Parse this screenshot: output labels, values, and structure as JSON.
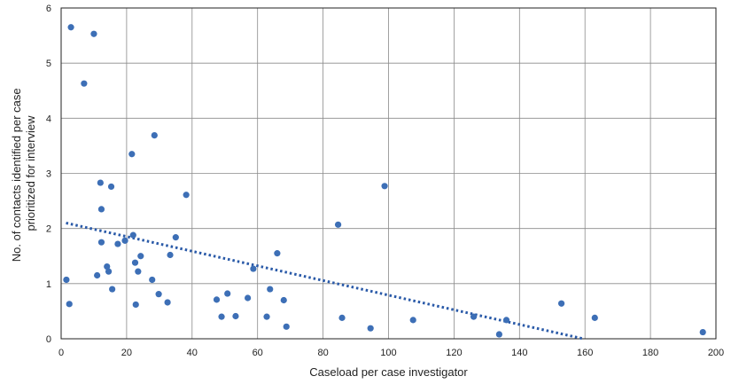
{
  "chart_data": {
    "type": "scatter",
    "title": "",
    "xlabel": "Caseload per case investigator",
    "ylabel_lines": [
      "No. of contacts identified per case",
      "prioritized for interview"
    ],
    "xlim": [
      0,
      200
    ],
    "ylim": [
      0,
      6
    ],
    "x_ticks": [
      0,
      20,
      40,
      60,
      80,
      100,
      120,
      140,
      160,
      180,
      200
    ],
    "y_ticks": [
      0,
      1,
      2,
      3,
      4,
      5,
      6
    ],
    "grid": true,
    "legend": "none",
    "point_color": "#3d6fb6",
    "trend_color": "#2a5aa8",
    "points": [
      {
        "x": 1.6,
        "y": 1.07
      },
      {
        "x": 2.5,
        "y": 0.63
      },
      {
        "x": 3.0,
        "y": 5.65
      },
      {
        "x": 7.0,
        "y": 4.63
      },
      {
        "x": 10.0,
        "y": 5.53
      },
      {
        "x": 11.0,
        "y": 1.15
      },
      {
        "x": 12.0,
        "y": 2.83
      },
      {
        "x": 12.3,
        "y": 2.35
      },
      {
        "x": 12.3,
        "y": 1.75
      },
      {
        "x": 14.0,
        "y": 1.31
      },
      {
        "x": 14.5,
        "y": 1.22
      },
      {
        "x": 15.3,
        "y": 2.76
      },
      {
        "x": 15.6,
        "y": 0.9
      },
      {
        "x": 17.3,
        "y": 1.72
      },
      {
        "x": 19.5,
        "y": 1.78
      },
      {
        "x": 21.6,
        "y": 3.35
      },
      {
        "x": 22.0,
        "y": 1.88
      },
      {
        "x": 22.6,
        "y": 1.38
      },
      {
        "x": 22.8,
        "y": 0.62
      },
      {
        "x": 23.5,
        "y": 1.22
      },
      {
        "x": 24.3,
        "y": 1.5
      },
      {
        "x": 27.8,
        "y": 1.07
      },
      {
        "x": 28.5,
        "y": 3.69
      },
      {
        "x": 29.8,
        "y": 0.81
      },
      {
        "x": 32.5,
        "y": 0.66
      },
      {
        "x": 33.3,
        "y": 1.52
      },
      {
        "x": 35.0,
        "y": 1.84
      },
      {
        "x": 38.2,
        "y": 2.61
      },
      {
        "x": 47.5,
        "y": 0.71
      },
      {
        "x": 49.0,
        "y": 0.4
      },
      {
        "x": 50.8,
        "y": 0.82
      },
      {
        "x": 53.3,
        "y": 0.41
      },
      {
        "x": 57.0,
        "y": 0.74
      },
      {
        "x": 58.7,
        "y": 1.27
      },
      {
        "x": 62.8,
        "y": 0.4
      },
      {
        "x": 63.8,
        "y": 0.9
      },
      {
        "x": 66.0,
        "y": 1.55
      },
      {
        "x": 68.0,
        "y": 0.7
      },
      {
        "x": 68.8,
        "y": 0.22
      },
      {
        "x": 84.6,
        "y": 2.07
      },
      {
        "x": 85.8,
        "y": 0.38
      },
      {
        "x": 94.5,
        "y": 0.19
      },
      {
        "x": 98.8,
        "y": 2.77
      },
      {
        "x": 107.5,
        "y": 0.34
      },
      {
        "x": 126.0,
        "y": 0.4
      },
      {
        "x": 133.8,
        "y": 0.08
      },
      {
        "x": 136.0,
        "y": 0.34
      },
      {
        "x": 152.8,
        "y": 0.64
      },
      {
        "x": 163.0,
        "y": 0.38
      },
      {
        "x": 196.0,
        "y": 0.12
      }
    ],
    "trendline": {
      "type": "linear",
      "style": "dotted",
      "x": [
        1.5,
        159.5
      ],
      "y": [
        2.1,
        0.0
      ]
    }
  }
}
